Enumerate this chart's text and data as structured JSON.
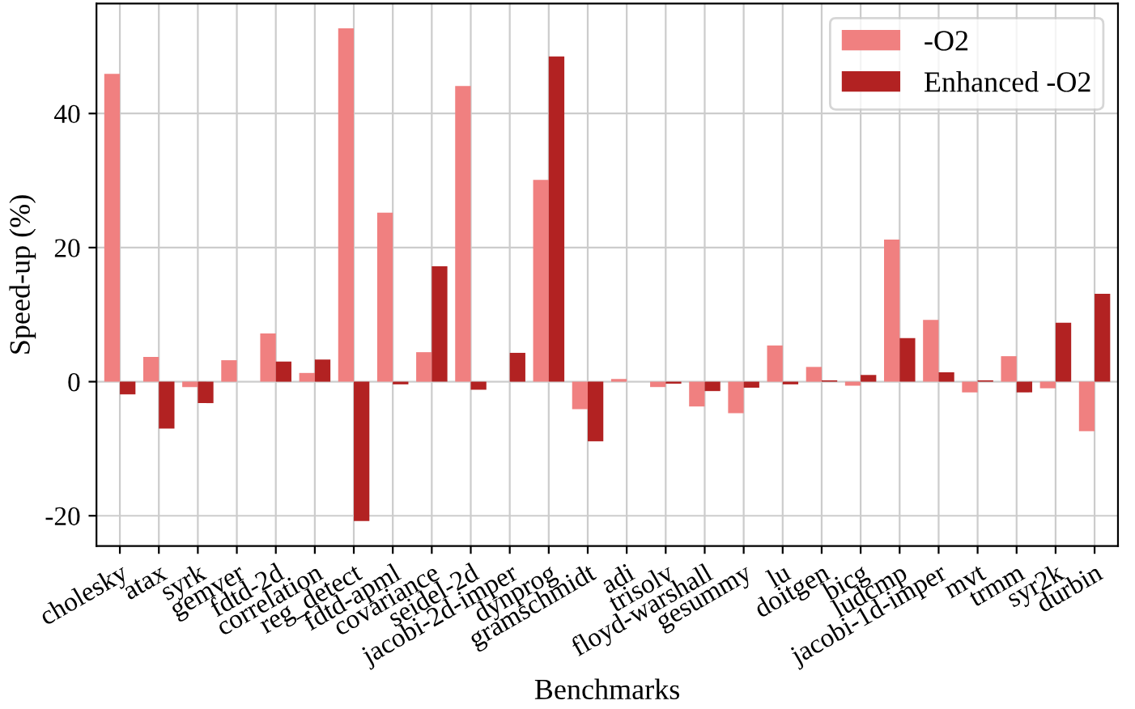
{
  "chart_data": {
    "type": "bar",
    "xlabel": "Benchmarks",
    "ylabel": "Speed-up (%)",
    "categories": [
      "cholesky",
      "atax",
      "syrk",
      "gemver",
      "fdtd-2d",
      "correlation",
      "reg_detect",
      "fdtd-apml",
      "covariance",
      "seidel-2d",
      "jacobi-2d-imper",
      "dynprog",
      "gramschmidt",
      "adi",
      "trisolv",
      "floyd-warshall",
      "gesummy",
      "lu",
      "doitgen",
      "bicg",
      "ludcmp",
      "jacobi-1d-imper",
      "mvt",
      "trmm",
      "syr2k",
      "durbin"
    ],
    "series": [
      {
        "name": "-O2",
        "color": "#f08080",
        "values": [
          45.9,
          3.7,
          -0.8,
          3.2,
          7.2,
          1.3,
          52.7,
          25.2,
          4.4,
          44.1,
          0,
          30.1,
          -4.1,
          0.4,
          -0.8,
          -3.7,
          -4.7,
          5.4,
          2.2,
          -0.6,
          21.2,
          9.2,
          -1.6,
          3.8,
          -1.0,
          -7.4
        ]
      },
      {
        "name": "Enhanced -O2",
        "color": "#b22222",
        "values": [
          -1.9,
          -7.0,
          -3.2,
          0,
          3.0,
          3.3,
          -20.8,
          -0.4,
          17.2,
          -1.2,
          4.3,
          48.5,
          -8.9,
          0,
          -0.3,
          -1.4,
          -0.9,
          -0.4,
          0.2,
          1.0,
          6.5,
          1.4,
          0.2,
          -1.6,
          8.8,
          13.1
        ]
      }
    ],
    "ylim": [
      -24.5,
      56.4
    ],
    "yticks": [
      -20,
      0,
      20,
      40
    ],
    "grid": true,
    "legend": "top right"
  }
}
